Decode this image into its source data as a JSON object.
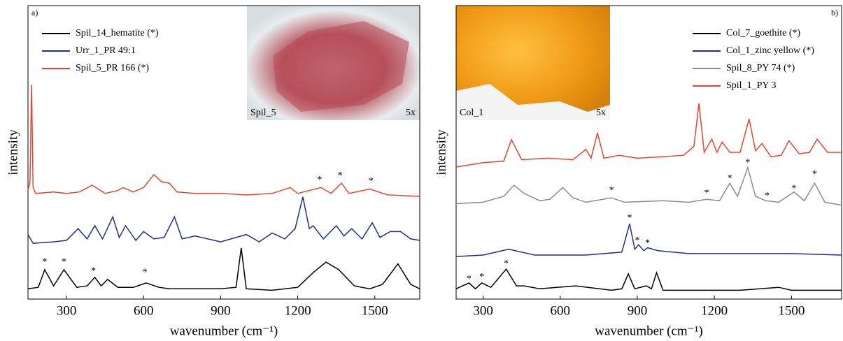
{
  "chart_data": [
    {
      "type": "line",
      "panel_label": "a)",
      "xlabel": "wavenumber (cm⁻¹)",
      "ylabel": "intensity",
      "xlim": [
        150,
        1675
      ],
      "ylim": [
        0,
        100
      ],
      "xticks": [
        300,
        600,
        900,
        1200,
        1500
      ],
      "legend": "upper left",
      "inset": {
        "label": "Spil_5",
        "magnification": "5x"
      },
      "series": [
        {
          "name": "Spil_14_hematite (*)",
          "color": "#000000",
          "x": [
            150,
            190,
            215,
            250,
            290,
            340,
            380,
            410,
            435,
            460,
            500,
            560,
            610,
            660,
            700,
            800,
            900,
            960,
            980,
            1000,
            1100,
            1200,
            1260,
            1310,
            1360,
            1420,
            1480,
            1530,
            1590,
            1640,
            1675
          ],
          "values": [
            3.5,
            4,
            10,
            4.5,
            10,
            4,
            4.5,
            7.4,
            4.5,
            6.7,
            4,
            4,
            5.5,
            4,
            3.5,
            3.5,
            3.5,
            4,
            17.4,
            3.5,
            3,
            4,
            9,
            12.6,
            10,
            4.5,
            3.5,
            5,
            12,
            5,
            3.5
          ]
        },
        {
          "name": "Urr_1_PR 49:1",
          "color": "#1f2f8a",
          "x": [
            150,
            170,
            250,
            300,
            345,
            380,
            410,
            440,
            480,
            505,
            530,
            570,
            600,
            640,
            680,
            720,
            750,
            800,
            900,
            1000,
            1050,
            1100,
            1150,
            1190,
            1220,
            1245,
            1260,
            1300,
            1350,
            1380,
            1410,
            1450,
            1490,
            1520,
            1560,
            1600,
            1640,
            1675
          ],
          "values": [
            22,
            19,
            19.5,
            20,
            24,
            20.5,
            25,
            20.5,
            28,
            21,
            25,
            20,
            23,
            20.5,
            21,
            28,
            20.5,
            21.5,
            19.5,
            22,
            19.5,
            22.5,
            20.5,
            24,
            34.8,
            24,
            25,
            20.5,
            25,
            21.5,
            24,
            20.5,
            26,
            21,
            23,
            23,
            20.5,
            20
          ]
        },
        {
          "name": "Spil_5_PR 166 (*)",
          "color": "#e8452c",
          "x": [
            150,
            158,
            164,
            170,
            180,
            250,
            300,
            350,
            400,
            450,
            500,
            520,
            560,
            600,
            640,
            670,
            700,
            730,
            800,
            900,
            1000,
            1100,
            1170,
            1200,
            1290,
            1330,
            1370,
            1400,
            1480,
            1550,
            1675
          ],
          "values": [
            37,
            40,
            73,
            38,
            36,
            36.5,
            36,
            36.5,
            38.8,
            36,
            37,
            38,
            36.5,
            38,
            42.4,
            40,
            39.5,
            36.5,
            36,
            36,
            35.5,
            36,
            38,
            36,
            38,
            36,
            39.5,
            36,
            37.5,
            35.5,
            35
          ]
        }
      ],
      "annotations": [
        {
          "text": "*",
          "x": 1285,
          "y": 40.5
        },
        {
          "text": "*",
          "x": 1365,
          "y": 42
        },
        {
          "text": "*",
          "x": 1485,
          "y": 40
        },
        {
          "text": "*",
          "x": 215,
          "y": 12.6
        },
        {
          "text": "*",
          "x": 290,
          "y": 12.6
        },
        {
          "text": "*",
          "x": 405,
          "y": 9.5
        },
        {
          "text": "*",
          "x": 605,
          "y": 9
        }
      ]
    },
    {
      "type": "line",
      "panel_label": "b)",
      "xlabel": "wavenumber (cm⁻¹)",
      "ylabel": "intensity",
      "xlim": [
        195,
        1695
      ],
      "ylim": [
        0,
        100
      ],
      "xticks": [
        300,
        600,
        900,
        1200,
        1500
      ],
      "legend": "upper right",
      "inset": {
        "label": "Col_1",
        "magnification": "5x"
      },
      "series": [
        {
          "name": "Col_7_goethite (*)",
          "color": "#000000",
          "x": [
            195,
            245,
            270,
            295,
            330,
            390,
            430,
            460,
            520,
            660,
            800,
            840,
            865,
            890,
            935,
            955,
            975,
            1000,
            1100,
            1300,
            1450,
            1500,
            1695
          ],
          "values": [
            3.5,
            5.5,
            3.5,
            5.5,
            4,
            10.2,
            4.5,
            4.5,
            3.5,
            4.5,
            3,
            3.5,
            8.6,
            3.5,
            4.5,
            3.5,
            9,
            3,
            3,
            3,
            4,
            3,
            3
          ]
        },
        {
          "name": "Col_1_zinc yellow (*)",
          "color": "#1f2f8a",
          "x": [
            195,
            300,
            400,
            500,
            700,
            840,
            870,
            890,
            905,
            925,
            940,
            980,
            1100,
            1300,
            1500,
            1695
          ],
          "values": [
            14.5,
            15,
            17,
            15,
            15,
            16,
            25.7,
            17,
            18.5,
            16.5,
            17.5,
            16.5,
            15.5,
            15.5,
            15.5,
            15
          ]
        },
        {
          "name": "Spil_8_PY 74 (*)",
          "color": "#8c8c8c",
          "x": [
            195,
            300,
            380,
            420,
            460,
            520,
            560,
            610,
            650,
            700,
            800,
            850,
            1000,
            1100,
            1170,
            1220,
            1260,
            1290,
            1330,
            1360,
            1400,
            1450,
            1510,
            1550,
            1590,
            1630,
            1695
          ],
          "values": [
            32.5,
            33,
            35,
            38.8,
            36,
            33.5,
            34,
            38,
            34.5,
            33,
            34.5,
            33,
            33.5,
            33,
            34,
            33.5,
            39.5,
            35,
            44.8,
            35,
            33.5,
            33,
            36.5,
            33.5,
            39.5,
            33,
            32
          ]
        },
        {
          "name": "Spil_1_PY 3",
          "color": "#e8452c",
          "x": [
            195,
            300,
            380,
            410,
            450,
            550,
            650,
            700,
            720,
            745,
            770,
            830,
            900,
            1000,
            1080,
            1120,
            1140,
            1160,
            1190,
            1210,
            1230,
            1260,
            1300,
            1335,
            1360,
            1385,
            1420,
            1460,
            1490,
            1530,
            1570,
            1600,
            1640,
            1695
          ],
          "values": [
            45,
            46.5,
            47,
            54.3,
            47.5,
            48,
            47.5,
            51,
            48,
            56.7,
            48,
            49,
            48,
            48.5,
            49,
            52,
            66.7,
            50,
            54.5,
            50,
            53.5,
            50,
            50,
            61.4,
            50.5,
            53,
            48.5,
            49,
            54,
            49.5,
            50,
            54.5,
            50,
            50
          ]
        }
      ],
      "annotations": [
        {
          "text": "*",
          "x": 800,
          "y": 37
        },
        {
          "text": "*",
          "x": 1170,
          "y": 36
        },
        {
          "text": "*",
          "x": 1260,
          "y": 41
        },
        {
          "text": "*",
          "x": 1330,
          "y": 46.4
        },
        {
          "text": "*",
          "x": 1405,
          "y": 35
        },
        {
          "text": "*",
          "x": 1510,
          "y": 37.6
        },
        {
          "text": "*",
          "x": 1590,
          "y": 42.4
        },
        {
          "text": "*",
          "x": 870,
          "y": 27.6
        },
        {
          "text": "*",
          "x": 900,
          "y": 19.8
        },
        {
          "text": "*",
          "x": 940,
          "y": 19
        },
        {
          "text": "*",
          "x": 245,
          "y": 6.7
        },
        {
          "text": "*",
          "x": 295,
          "y": 7.4
        },
        {
          "text": "*",
          "x": 390,
          "y": 11.9
        }
      ]
    }
  ]
}
